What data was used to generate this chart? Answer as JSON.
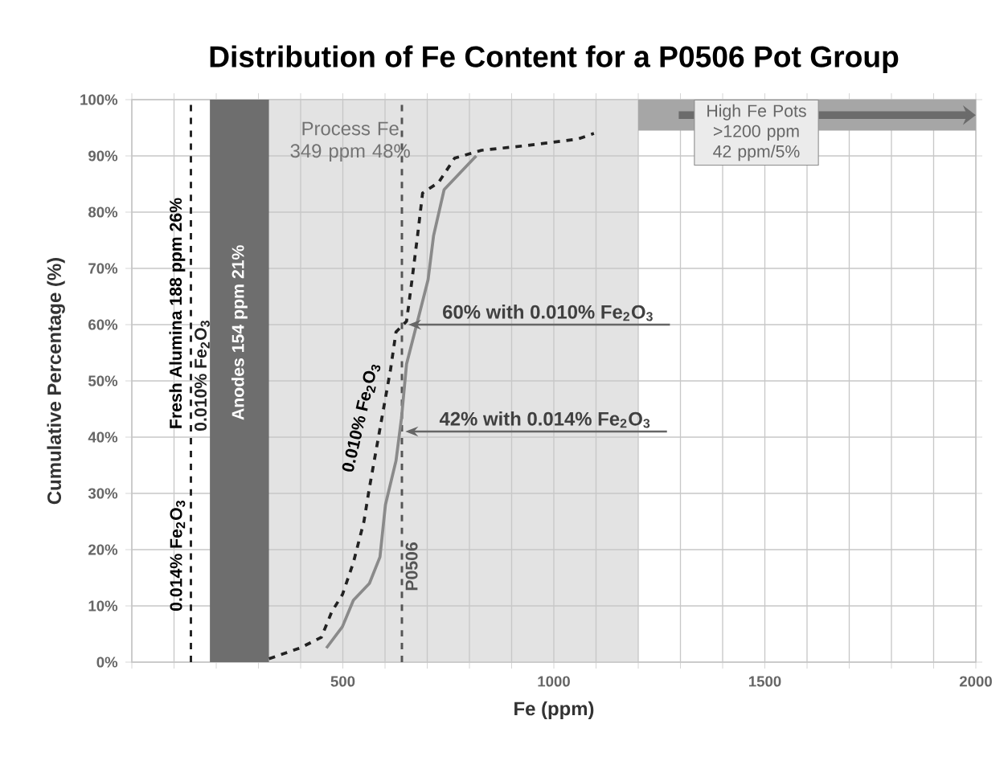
{
  "chart_data": {
    "type": "line",
    "title": "Distribution of Fe Content for a P0506 Pot Group",
    "xlabel": "Fe (ppm)",
    "ylabel": "Cumulative Percentage (%)",
    "xlim": [
      0,
      2000
    ],
    "ylim": [
      0,
      100
    ],
    "xticks": [
      {
        "value": 0,
        "label": null
      },
      {
        "value": 100,
        "label": null
      },
      {
        "value": 200,
        "label": null
      },
      {
        "value": 300,
        "label": null
      },
      {
        "value": 400,
        "label": null
      },
      500,
      {
        "value": 600,
        "label": null
      },
      {
        "value": 700,
        "label": null
      },
      {
        "value": 800,
        "label": null
      },
      {
        "value": 900,
        "label": null
      },
      1000,
      {
        "value": 1100,
        "label": null
      },
      {
        "value": 1200,
        "label": null
      },
      {
        "value": 1300,
        "label": null
      },
      {
        "value": 1400,
        "label": null
      },
      1500,
      {
        "value": 1600,
        "label": null
      },
      {
        "value": 1700,
        "label": null
      },
      {
        "value": 1800,
        "label": null
      },
      {
        "value": 1900,
        "label": null
      },
      2000
    ],
    "yticks": [
      {
        "value": 0,
        "label": "0%"
      },
      {
        "value": 10,
        "label": "10%"
      },
      {
        "value": 20,
        "label": "20%"
      },
      {
        "value": 30,
        "label": "30%"
      },
      {
        "value": 40,
        "label": "40%"
      },
      {
        "value": 50,
        "label": "50%"
      },
      {
        "value": 60,
        "label": "60%"
      },
      {
        "value": 70,
        "label": "70%"
      },
      {
        "value": 80,
        "label": "80%"
      },
      {
        "value": 90,
        "label": "90%"
      },
      {
        "value": 100,
        "label": "100%"
      }
    ],
    "grid": true,
    "series": [
      {
        "color": "#222222",
        "line_style": "dashed",
        "x": [
          325,
          398,
          449,
          474,
          499,
          525,
          550,
          563,
          588,
          613,
          626,
          651,
          664,
          677,
          689,
          727,
          765,
          829,
          930,
          1057,
          1095
        ],
        "values": [
          0.6,
          2.5,
          4.4,
          9,
          12,
          17.7,
          25,
          31,
          41.5,
          52,
          58.7,
          60.6,
          68,
          75.8,
          83.4,
          85.3,
          89.6,
          91,
          91.8,
          93,
          94
        ]
      },
      {
        "color": "#8a8a8a",
        "line_style": "solid",
        "x": [
          461,
          499,
          525,
          563,
          588,
          601,
          626,
          639,
          651,
          677,
          702,
          715,
          740,
          778,
          816
        ],
        "values": [
          2.5,
          6.3,
          11,
          14,
          18.7,
          28,
          35.8,
          43.4,
          53,
          60.6,
          68,
          75.8,
          84,
          87,
          90
        ]
      }
    ],
    "bands": [
      {
        "axis": "x",
        "from": 185,
        "to": 325,
        "label": "Anodes 154 ppm 21%",
        "color": "#6e6e6e"
      },
      {
        "axis": "x",
        "from": 325,
        "to": 1200,
        "label": "Process Fe 349 ppm 48%",
        "color": "#e3e3e3"
      },
      {
        "axis": "x",
        "from": 1200,
        "to": 2000,
        "label": "High Fe Pots >1200 ppm 42 ppm/5%",
        "color": "#a6a6a6"
      }
    ],
    "ref_lines": [
      {
        "axis": "x",
        "value": 140,
        "label": "0.010% Fe$_{2}$O$_{3}$",
        "line_style": "dashed",
        "color": "#222222"
      },
      {
        "axis": "x",
        "value": 640,
        "label": "P0506",
        "line_style": "dashed",
        "color": "#555555"
      }
    ],
    "annotations": [
      {
        "text": "60% with 0.010% Fe$_{2}$O$_{3}$",
        "x": 655,
        "y": 60
      },
      {
        "text": "42% with 0.014% Fe$_{2}$O$_{3}$",
        "x": 648,
        "y": 41
      },
      {
        "text": "0.010% Fe$_{2}$O$_{3}$",
        "x": 572,
        "y": 43
      },
      {
        "text": "0.014% Fe$_{2}$O$_{3}$",
        "x": 140,
        "y": 19
      },
      {
        "text": "Fresh Alumina 188 ppm 26%",
        "x": 140,
        "y": 62
      }
    ]
  }
}
